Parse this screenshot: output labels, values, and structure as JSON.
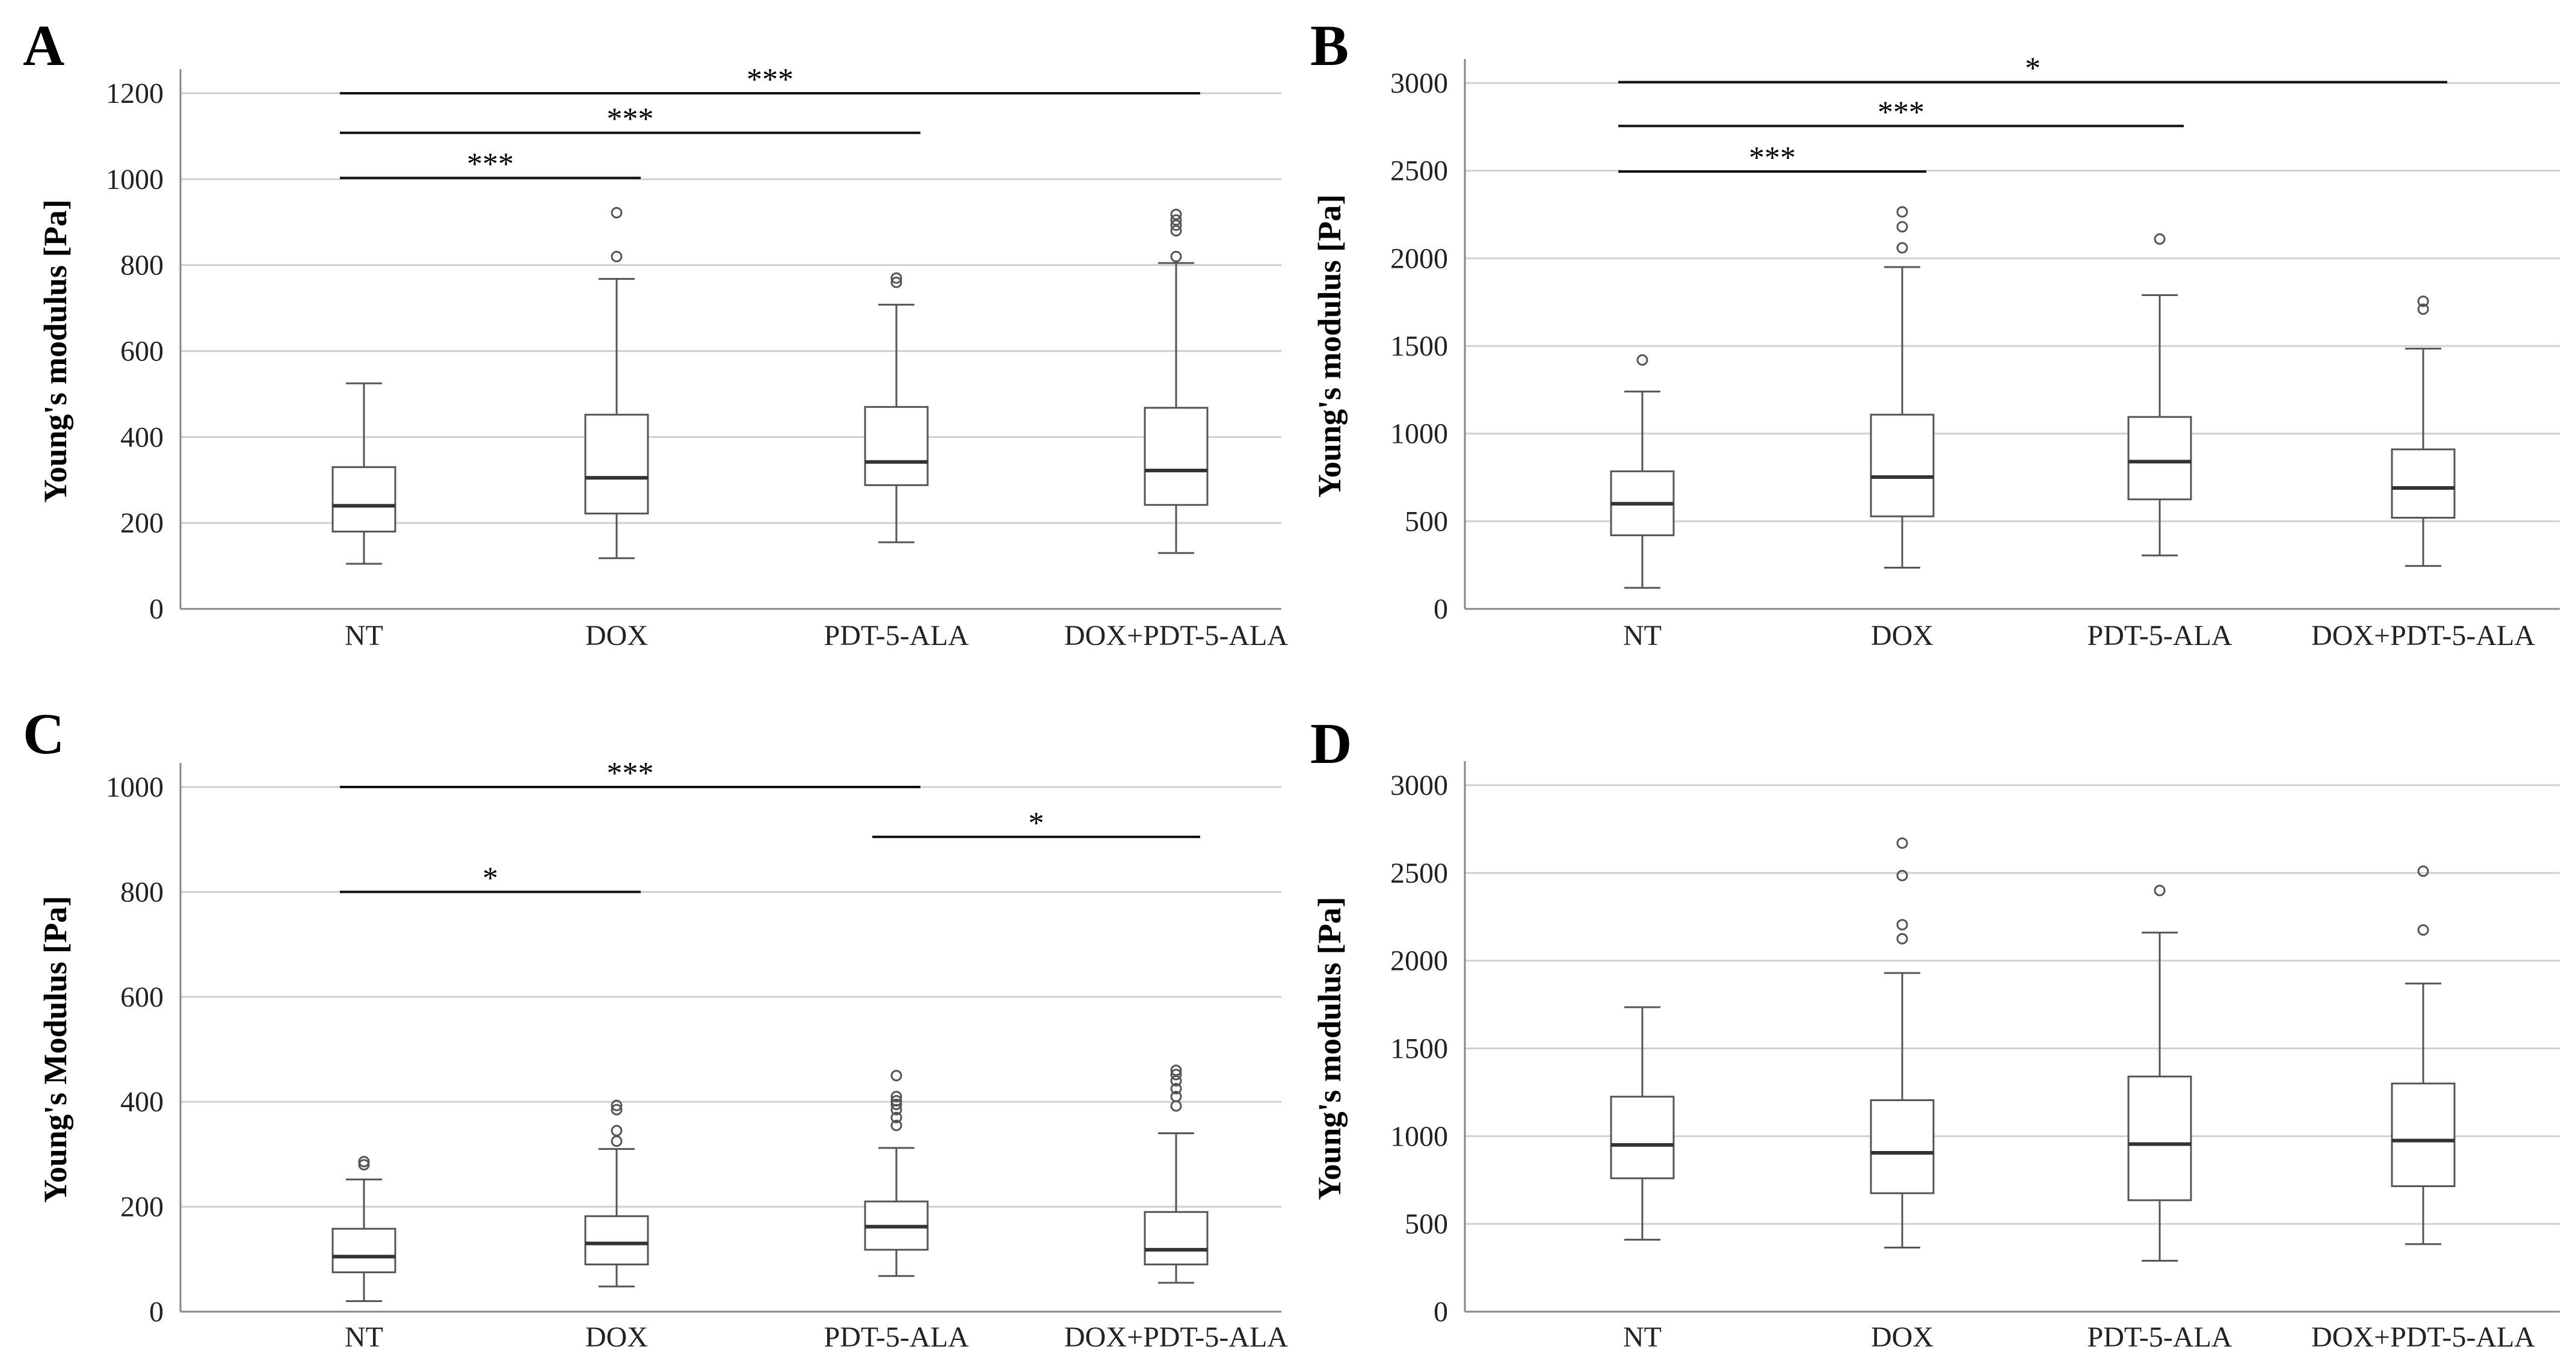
{
  "chart_data": [
    {
      "type": "boxplot",
      "panel": "A",
      "ylabel": "Young's modulus [Pa]",
      "ylim": [
        0,
        1200
      ],
      "yticks": [
        0,
        200,
        400,
        600,
        800,
        1000,
        1200
      ],
      "grid": true,
      "categories": [
        "NT",
        "DOX",
        "PDT-5-ALA",
        "DOX+PDT-5-ALA"
      ],
      "boxes": [
        {
          "min": 105,
          "q1": 180,
          "median": 240,
          "q3": 330,
          "max": 525,
          "outliers": []
        },
        {
          "min": 118,
          "q1": 222,
          "median": 305,
          "q3": 452,
          "max": 768,
          "outliers": [
            820,
            922
          ]
        },
        {
          "min": 155,
          "q1": 288,
          "median": 342,
          "q3": 470,
          "max": 708,
          "outliers": [
            760,
            770
          ]
        },
        {
          "min": 130,
          "q1": 242,
          "median": 322,
          "q3": 468,
          "max": 805,
          "outliers": [
            820,
            880,
            893,
            905,
            918
          ]
        }
      ],
      "significance": [
        {
          "from": 0,
          "to": 1,
          "y": 1003,
          "label": "***"
        },
        {
          "from": 0,
          "to": 2,
          "y": 1108,
          "label": "***"
        },
        {
          "from": 0,
          "to": 3,
          "y": 1200,
          "label": "***"
        }
      ]
    },
    {
      "type": "boxplot",
      "panel": "B",
      "ylabel": "Young's modulus [Pa]",
      "ylim": [
        0,
        3000
      ],
      "yticks": [
        0,
        500,
        1000,
        1500,
        2000,
        2500,
        3000
      ],
      "grid": true,
      "categories": [
        "NT",
        "DOX",
        "PDT-5-ALA",
        "DOX+PDT-5-ALA"
      ],
      "boxes": [
        {
          "min": 120,
          "q1": 420,
          "median": 600,
          "q3": 785,
          "max": 1240,
          "outliers": [
            1420
          ]
        },
        {
          "min": 235,
          "q1": 528,
          "median": 752,
          "q3": 1108,
          "max": 1950,
          "outliers": [
            2060,
            2180,
            2265
          ]
        },
        {
          "min": 305,
          "q1": 625,
          "median": 840,
          "q3": 1095,
          "max": 1790,
          "outliers": [
            2110
          ]
        },
        {
          "min": 245,
          "q1": 520,
          "median": 690,
          "q3": 910,
          "max": 1485,
          "outliers": [
            1710,
            1755
          ]
        }
      ],
      "significance": [
        {
          "from": 0,
          "to": 1,
          "y": 2495,
          "label": "***"
        },
        {
          "from": 0,
          "to": 2,
          "y": 2755,
          "label": "***"
        },
        {
          "from": 0,
          "to": 3,
          "y": 3005,
          "label": "*"
        }
      ]
    },
    {
      "type": "boxplot",
      "panel": "C",
      "ylabel": "Young's Modulus [Pa]",
      "ylim": [
        0,
        1000
      ],
      "yticks": [
        0,
        200,
        400,
        600,
        800,
        1000
      ],
      "grid": true,
      "categories": [
        "NT",
        "DOX",
        "PDT-5-ALA",
        "DOX+PDT-5-ALA"
      ],
      "boxes": [
        {
          "min": 20,
          "q1": 75,
          "median": 105,
          "q3": 158,
          "max": 252,
          "outliers": [
            280,
            286
          ]
        },
        {
          "min": 48,
          "q1": 90,
          "median": 130,
          "q3": 182,
          "max": 310,
          "outliers": [
            325,
            345,
            385,
            393
          ]
        },
        {
          "min": 68,
          "q1": 118,
          "median": 162,
          "q3": 210,
          "max": 312,
          "outliers": [
            355,
            370,
            385,
            395,
            402,
            410,
            450
          ]
        },
        {
          "min": 55,
          "q1": 90,
          "median": 118,
          "q3": 190,
          "max": 340,
          "outliers": [
            392,
            410,
            425,
            440,
            452,
            460
          ]
        }
      ],
      "significance": [
        {
          "from": 0,
          "to": 1,
          "y": 800,
          "label": "*"
        },
        {
          "from": 0,
          "to": 2,
          "y": 1000,
          "label": "***"
        },
        {
          "from": 2,
          "to": 3,
          "y": 905,
          "label": "*"
        }
      ]
    },
    {
      "type": "boxplot",
      "panel": "D",
      "ylabel": "Young's modulus [Pa]",
      "ylim": [
        0,
        3000
      ],
      "yticks": [
        0,
        500,
        1000,
        1500,
        2000,
        2500,
        3000
      ],
      "grid": true,
      "categories": [
        "NT",
        "DOX",
        "PDT-5-ALA",
        "DOX+PDT-5-ALA"
      ],
      "boxes": [
        {
          "min": 410,
          "q1": 760,
          "median": 950,
          "q3": 1225,
          "max": 1735,
          "outliers": []
        },
        {
          "min": 365,
          "q1": 675,
          "median": 905,
          "q3": 1205,
          "max": 1930,
          "outliers": [
            2125,
            2205,
            2485,
            2670
          ]
        },
        {
          "min": 290,
          "q1": 635,
          "median": 955,
          "q3": 1340,
          "max": 2160,
          "outliers": [
            2400
          ]
        },
        {
          "min": 385,
          "q1": 715,
          "median": 975,
          "q3": 1300,
          "max": 1870,
          "outliers": [
            2175,
            2510
          ]
        }
      ],
      "significance": []
    }
  ]
}
